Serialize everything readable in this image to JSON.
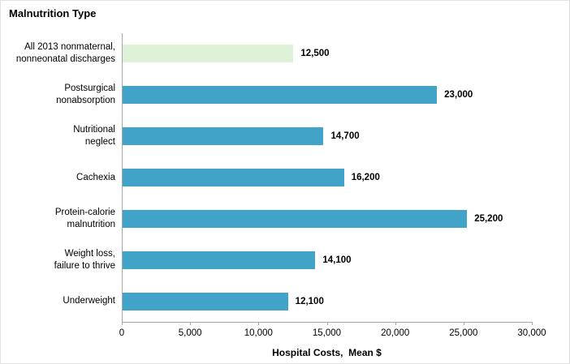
{
  "chart_data": {
    "type": "bar",
    "orientation": "horizontal",
    "title": "Malnutrition Type",
    "xlabel": "Hospital Costs,  Mean $",
    "categories": [
      "All 2013 nonmaternal,\nnonneonatal discharges",
      "Postsurgical\nnonabsorption",
      "Nutritional\nneglect",
      "Cachexia",
      "Protein-calorie\nmalnutrition",
      "Weight loss,\nfailure to thrive",
      "Underweight"
    ],
    "values": [
      12500,
      23000,
      14700,
      16200,
      25200,
      14100,
      12100
    ],
    "value_labels": [
      "12,500",
      "23,000",
      "14,700",
      "16,200",
      "25,200",
      "14,100",
      "12,100"
    ],
    "highlight_index": 0,
    "xlim": [
      0,
      30000
    ],
    "xticks": [
      0,
      5000,
      10000,
      15000,
      20000,
      25000,
      30000
    ],
    "xtick_labels": [
      "0",
      "5,000",
      "10,000",
      "15,000",
      "20,000",
      "25,000",
      "30,000"
    ],
    "legend": "none",
    "grid": "off"
  },
  "colors": {
    "bar": "#42a3c8",
    "highlight_bar": "#dff2d8",
    "axis": "#a6a6a6",
    "text": "#000000"
  }
}
